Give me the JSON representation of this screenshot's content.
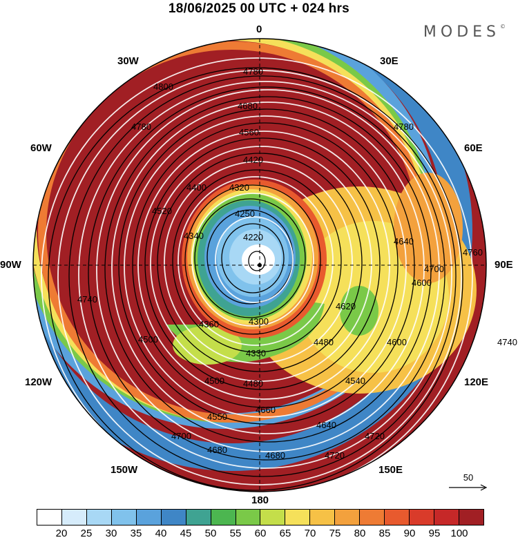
{
  "header": {
    "title": "18/06/2025  00 UTC  + 024 hrs",
    "brand": "MODES"
  },
  "map": {
    "projection": "polar-stereographic-north",
    "lon_labels": {
      "lon_0": "0",
      "lon_30e": "30E",
      "lon_60e": "60E",
      "lon_90e": "90E",
      "lon_120e": "120E",
      "lon_150e": "150E",
      "lon_180": "180",
      "lon_150w": "150W",
      "lon_120w": "120W",
      "lon_90w": "90W",
      "lon_60w": "60W",
      "lon_30w": "30W"
    },
    "contour_labels": [
      "4800",
      "4780",
      "4680",
      "4660",
      "4560",
      "4420",
      "4320",
      "4250",
      "4220",
      "4340",
      "4400",
      "4520",
      "4640",
      "4760",
      "4740",
      "4580",
      "4620",
      "4600",
      "4700",
      "4360",
      "4300",
      "4330",
      "4480",
      "4500",
      "4540",
      "4720",
      "4550",
      "4800"
    ],
    "streamlines": true
  },
  "vector_legend": {
    "value": "50"
  },
  "colorbar": {
    "colors": [
      "#ffffff",
      "#d6ecfb",
      "#a8d8f5",
      "#80c2ec",
      "#5aa2dc",
      "#3f86c6",
      "#3fa392",
      "#4cb650",
      "#7ac948",
      "#c4de4a",
      "#f5e05a",
      "#f6c146",
      "#f3a13d",
      "#ee7b34",
      "#e85a2e",
      "#d93b2a",
      "#c62828",
      "#a11f24"
    ],
    "ticks": [
      "20",
      "25",
      "30",
      "35",
      "40",
      "45",
      "50",
      "55",
      "60",
      "65",
      "70",
      "75",
      "80",
      "85",
      "90",
      "95",
      "100"
    ]
  }
}
